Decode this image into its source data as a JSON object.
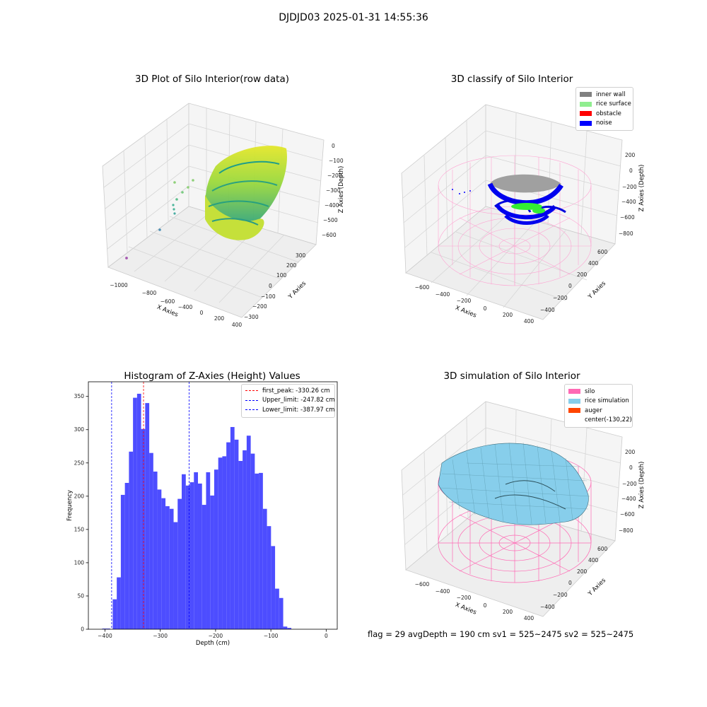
{
  "suptitle": "DJDJD03 2025-01-31 14:55:36",
  "panels": {
    "raw": {
      "title": "3D Plot of Silo Interior(row data)",
      "xlabel": "X Axies",
      "ylabel": "Y Axies",
      "zlabel": "Z Axies (Depth)",
      "xticks": [
        "−1000",
        "−800",
        "−600",
        "−400",
        "−200",
        "0",
        "200",
        "400"
      ],
      "yticks": [
        "300",
        "200",
        "100",
        "0",
        "−100",
        "−200",
        "−300"
      ],
      "zticks": [
        "0",
        "−100",
        "−200",
        "−300",
        "−400",
        "−500",
        "−600"
      ]
    },
    "classify": {
      "title": "3D classify of Silo Interior",
      "xlabel": "X Axies",
      "ylabel": "Y Axies",
      "zlabel": "Z Axies (Depth)",
      "xticks": [
        "−600",
        "−400",
        "−200",
        "0",
        "200",
        "400"
      ],
      "yticks": [
        "600",
        "400",
        "200",
        "0",
        "−200",
        "−400"
      ],
      "zticks": [
        "200",
        "0",
        "−200",
        "−400",
        "−600",
        "−800"
      ],
      "legend": [
        {
          "label": "inner wall",
          "color": "#808080"
        },
        {
          "label": "rice surface",
          "color": "#90ee90"
        },
        {
          "label": "obstacle",
          "color": "#ff0000"
        },
        {
          "label": "noise",
          "color": "#0000ff"
        }
      ]
    },
    "simulation": {
      "title": "3D simulation of Silo Interior",
      "xlabel": "X Axies",
      "ylabel": "Y Axies",
      "zlabel": "Z Axies (Depth)",
      "xticks": [
        "−600",
        "−400",
        "−200",
        "0",
        "200",
        "400"
      ],
      "yticks": [
        "600",
        "400",
        "200",
        "0",
        "−200",
        "−400"
      ],
      "zticks": [
        "200",
        "0",
        "−200",
        "−400",
        "−600",
        "−800"
      ],
      "legend": [
        {
          "label": "silo",
          "color": "#ff69b4"
        },
        {
          "label": "rice simulation",
          "color": "#87ceeb"
        },
        {
          "label": "auger",
          "color": "#ff4500"
        },
        {
          "label": "center(-130,22)",
          "color": ""
        }
      ]
    }
  },
  "chart_data": {
    "type": "bar",
    "title": "Histogram of Z-Axies (Height) Values",
    "xlabel": "Depth (cm)",
    "ylabel": "Frequency",
    "xlim": [
      -430,
      20
    ],
    "ylim": [
      0,
      372
    ],
    "xticks": [
      -400,
      -300,
      -200,
      -100,
      0
    ],
    "yticks": [
      0,
      50,
      100,
      150,
      200,
      250,
      300,
      350
    ],
    "bins": {
      "start": -386,
      "width": 7.34,
      "values": [
        45,
        78,
        202,
        220,
        267,
        348,
        354,
        301,
        340,
        265,
        237,
        210,
        197,
        185,
        181,
        161,
        196,
        233,
        216,
        221,
        236,
        219,
        187,
        236,
        201,
        240,
        258,
        260,
        281,
        304,
        285,
        253,
        269,
        291,
        264,
        234,
        235,
        181,
        155,
        125,
        61,
        47,
        4,
        2
      ]
    },
    "outliers": [
      {
        "x": -405,
        "value": 1
      },
      {
        "x": -398,
        "value": 1
      }
    ],
    "vlines": [
      {
        "label": "first_peak: -330.26 cm",
        "x": -330.26,
        "color": "#ff0000"
      },
      {
        "label": "Upper_limit: -247.82 cm",
        "x": -247.82,
        "color": "#0000ff"
      },
      {
        "label": "Lower_limit: -387.97 cm",
        "x": -387.97,
        "color": "#0000ff"
      }
    ],
    "bar_color": "#4d4dff"
  },
  "status": {
    "text": "flag = 29  avgDepth = 190 cm  sv1 = 525~2475  sv2 = 525~2475"
  }
}
